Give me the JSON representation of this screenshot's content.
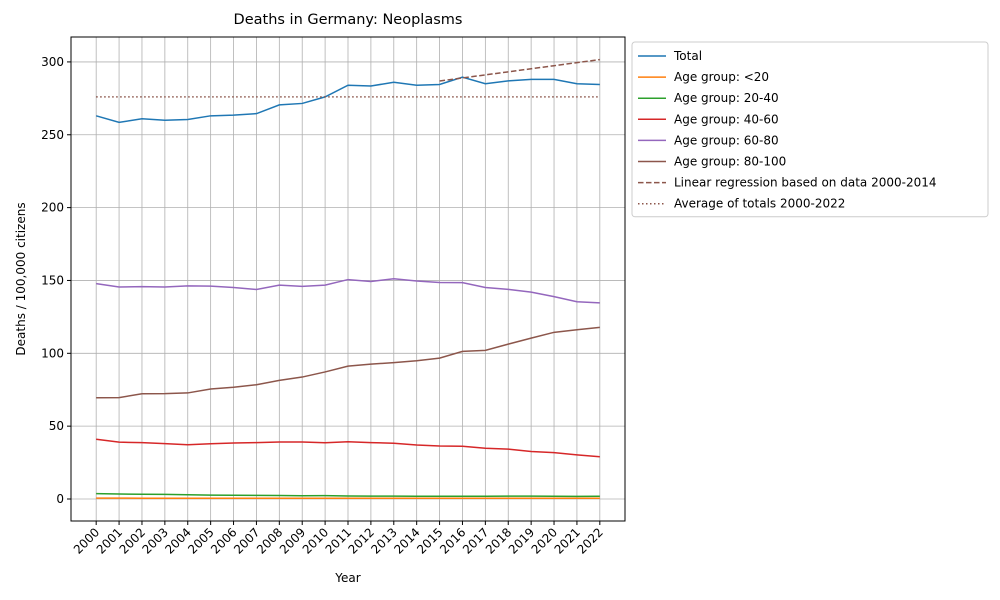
{
  "chart_data": {
    "type": "line",
    "title": "Deaths in Germany: Neoplasms",
    "xlabel": "Year",
    "ylabel": "Deaths / 100,000 citizens",
    "x": [
      2000,
      2001,
      2002,
      2003,
      2004,
      2005,
      2006,
      2007,
      2008,
      2009,
      2010,
      2011,
      2012,
      2013,
      2014,
      2015,
      2016,
      2017,
      2018,
      2019,
      2020,
      2021,
      2022
    ],
    "xlim": [
      1998.9,
      2023.1
    ],
    "xticks": [
      2000,
      2001,
      2002,
      2003,
      2004,
      2005,
      2006,
      2007,
      2008,
      2009,
      2010,
      2011,
      2012,
      2013,
      2014,
      2015,
      2016,
      2017,
      2018,
      2019,
      2020,
      2021,
      2022
    ],
    "ylim": [
      -15.1,
      317.1
    ],
    "yticks": [
      0,
      50,
      100,
      150,
      200,
      250,
      300
    ],
    "grid": true,
    "legend": "outside-right",
    "series": [
      {
        "name": "Total",
        "color": "#1f77b4",
        "style": "solid",
        "values": [
          263,
          258.5,
          261,
          260,
          260.5,
          263,
          263.5,
          264.5,
          270.5,
          271.5,
          276,
          284,
          283.5,
          286,
          284,
          284.5,
          289.5,
          285,
          287,
          288,
          288,
          285,
          284.5
        ]
      },
      {
        "name": "Age group: <20",
        "color": "#ff7f0e",
        "style": "solid",
        "values": [
          0.6,
          0.6,
          0.5,
          0.5,
          0.5,
          0.5,
          0.5,
          0.5,
          0.5,
          0.5,
          0.5,
          0.5,
          0.5,
          0.5,
          0.5,
          0.5,
          0.5,
          0.5,
          0.5,
          0.5,
          0.5,
          0.5,
          0.5
        ]
      },
      {
        "name": "Age group: 20-40",
        "color": "#2ca02c",
        "style": "solid",
        "values": [
          3.7,
          3.4,
          3.3,
          3.2,
          2.9,
          2.7,
          2.6,
          2.5,
          2.4,
          2.2,
          2.3,
          2.1,
          2.0,
          2.0,
          1.9,
          1.9,
          1.9,
          1.9,
          2.0,
          2.0,
          1.9,
          1.8,
          1.9
        ]
      },
      {
        "name": "Age group: 40-60",
        "color": "#d62728",
        "style": "solid",
        "values": [
          41,
          39,
          38.7,
          38,
          37.2,
          37.9,
          38.4,
          38.7,
          39.1,
          39.1,
          38.6,
          39.3,
          38.7,
          38.3,
          37.1,
          36.4,
          36.2,
          34.8,
          34.2,
          32.6,
          31.8,
          30.3,
          29.0
        ]
      },
      {
        "name": "Age group: 60-80",
        "color": "#9467bd",
        "style": "solid",
        "values": [
          147.8,
          145.5,
          145.8,
          145.5,
          146.3,
          146.1,
          145.2,
          143.8,
          146.8,
          145.9,
          146.8,
          150.6,
          149.3,
          151.2,
          149.6,
          148.6,
          148.5,
          145.2,
          143.9,
          142.0,
          138.9,
          135.4,
          134.6
        ]
      },
      {
        "name": "Age group: 80-100",
        "color": "#8c564b",
        "style": "solid",
        "values": [
          69.5,
          69.6,
          72.2,
          72.3,
          72.8,
          75.5,
          76.7,
          78.4,
          81.4,
          83.7,
          87.2,
          91.2,
          92.6,
          93.6,
          94.9,
          96.7,
          101.3,
          102,
          106.3,
          110.4,
          114.4,
          116.2,
          117.8
        ]
      },
      {
        "name": "Linear regression based on data 2000-2014",
        "color": "#8c564b",
        "style": "dashed",
        "x": [
          2015,
          2016,
          2017,
          2018,
          2019,
          2020,
          2021,
          2022
        ],
        "values": [
          286.9,
          289.0,
          291.1,
          293.2,
          295.3,
          297.4,
          299.5,
          301.6
        ]
      },
      {
        "name": "Average of totals 2000-2022",
        "color": "#8c564b",
        "style": "dotted",
        "x": [
          2000,
          2022
        ],
        "values": [
          276.0,
          276.0
        ]
      }
    ]
  }
}
